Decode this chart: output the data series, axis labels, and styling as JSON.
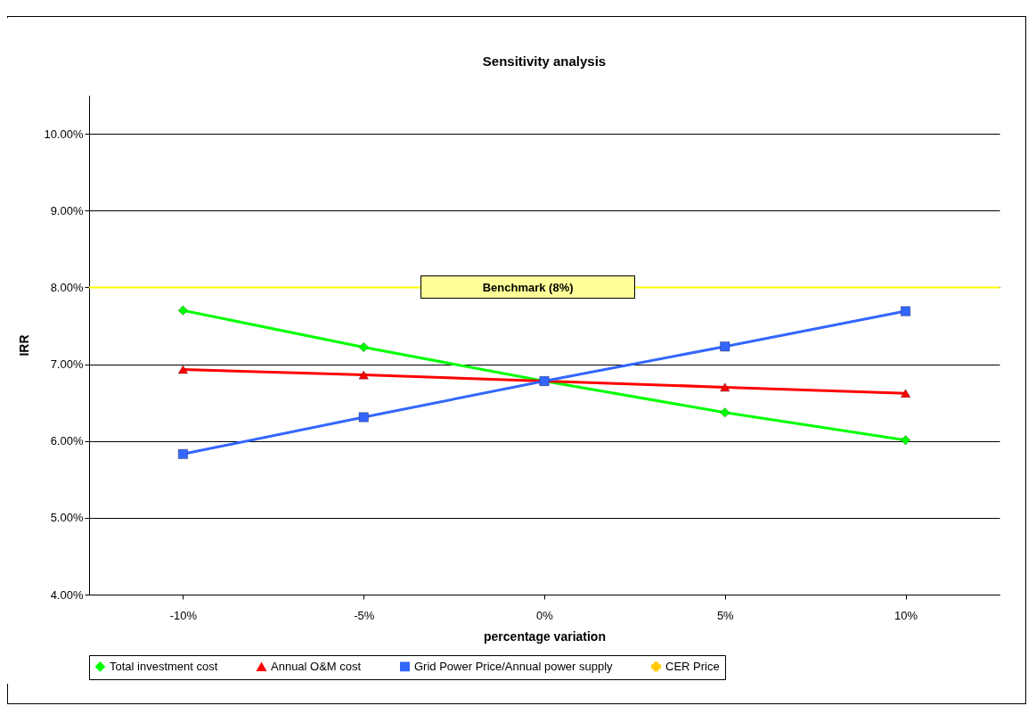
{
  "chart_data": {
    "type": "line",
    "title": "Sensitivity analysis",
    "xlabel": "percentage variation",
    "ylabel": "IRR",
    "categories": [
      "-10%",
      "-5%",
      "0%",
      "5%",
      "10%"
    ],
    "series": [
      {
        "name": "Total investment cost",
        "color": "#00ff00",
        "marker": "diamond",
        "values": [
          7.7,
          7.22,
          6.78,
          6.37,
          6.01
        ]
      },
      {
        "name": "Annual O&M cost",
        "color": "#ff0000",
        "marker": "triangle",
        "values": [
          6.93,
          6.86,
          6.78,
          6.7,
          6.62
        ]
      },
      {
        "name": "Grid Power Price/Annual power supply",
        "color": "#3366ff",
        "marker": "square",
        "values": [
          5.83,
          6.31,
          6.78,
          7.23,
          7.69
        ]
      },
      {
        "name": "CER Price",
        "color": "#ffcc00",
        "marker": "cross",
        "values": [
          null,
          null,
          null,
          null,
          null
        ]
      }
    ],
    "ylim": [
      4,
      10.5
    ],
    "yticks": [
      {
        "value": 4,
        "label": "4.00%"
      },
      {
        "value": 5,
        "label": "5.00%"
      },
      {
        "value": 6,
        "label": "6.00%"
      },
      {
        "value": 7,
        "label": "7.00%"
      },
      {
        "value": 8,
        "label": "8.00%"
      },
      {
        "value": 9,
        "label": "9.00%"
      },
      {
        "value": 10,
        "label": "10.00%"
      }
    ],
    "ref_lines": [
      {
        "axis": "y",
        "value": 8,
        "label": "Benchmark (8%)",
        "color": "#ffff00"
      }
    ],
    "grid": "y",
    "legend": "bottom"
  }
}
